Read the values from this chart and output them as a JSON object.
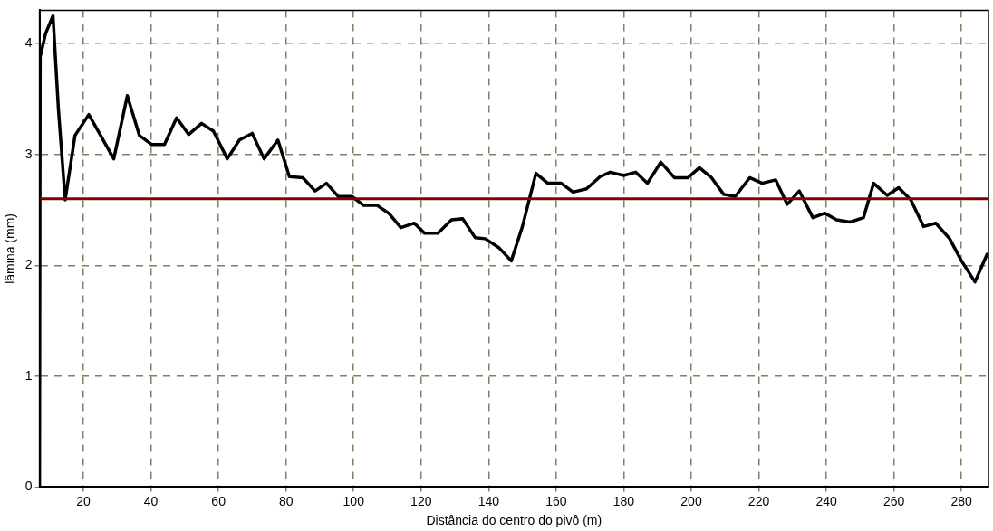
{
  "chart_data": {
    "type": "line",
    "xlabel": "Distância do centro do pivô (m)",
    "ylabel": "lâmina (mm)",
    "x": [
      7,
      7.2,
      8.8,
      11,
      11.7,
      12.6,
      14.6,
      17.5,
      21.6,
      29,
      33,
      36.6,
      40.2,
      44,
      47.6,
      51.2,
      55,
      58.5,
      62.6,
      66.2,
      70,
      73.5,
      77.6,
      81,
      85,
      88.6,
      92,
      95.5,
      99.6,
      103,
      107,
      110.4,
      114,
      118,
      121,
      125,
      129,
      132.3,
      136,
      139,
      143,
      146.7,
      150,
      154,
      157.5,
      161.5,
      165,
      169,
      173,
      176,
      180,
      183.5,
      187,
      191,
      195,
      199,
      202.4,
      206,
      209.6,
      213,
      217.3,
      221,
      225,
      228.4,
      232,
      236,
      239.6,
      243,
      247,
      251,
      254,
      258,
      261.4,
      265,
      268.8,
      272.4,
      276.5,
      280,
      284,
      287.6
    ],
    "series": [
      {
        "color": "#000000",
        "values": [
          0,
          3.88,
          4.09,
          4.25,
          3.88,
          3.41,
          2.59,
          3.17,
          3.36,
          2.96,
          3.53,
          3.17,
          3.09,
          3.09,
          3.33,
          3.18,
          3.28,
          3.21,
          2.96,
          3.13,
          3.19,
          2.96,
          3.13,
          2.8,
          2.79,
          2.67,
          2.74,
          2.62,
          2.62,
          2.54,
          2.54,
          2.47,
          2.34,
          2.38,
          2.29,
          2.29,
          2.41,
          2.42,
          2.25,
          2.24,
          2.16,
          2.04,
          2.35,
          2.83,
          2.74,
          2.74,
          2.66,
          2.69,
          2.8,
          2.84,
          2.81,
          2.84,
          2.74,
          2.93,
          2.79,
          2.79,
          2.88,
          2.79,
          2.64,
          2.62,
          2.79,
          2.74,
          2.77,
          2.55,
          2.67,
          2.43,
          2.47,
          2.41,
          2.39,
          2.43,
          2.74,
          2.63,
          2.7,
          2.59,
          2.35,
          2.38,
          2.24,
          2.04,
          1.85,
          2.1
        ]
      }
    ],
    "xlim": [
      7,
      288
    ],
    "xticks": [
      20,
      40,
      60,
      80,
      100,
      120,
      140,
      160,
      180,
      200,
      220,
      240,
      260,
      280
    ],
    "ylim": [
      0,
      4.3
    ],
    "yticks": [
      0,
      1,
      2,
      3,
      4
    ],
    "ref_lines": [
      {
        "axis": "y",
        "value": 2.6,
        "color": "#800000"
      }
    ],
    "grid": true,
    "legend": false,
    "marker": "none",
    "line_style": "solid"
  }
}
